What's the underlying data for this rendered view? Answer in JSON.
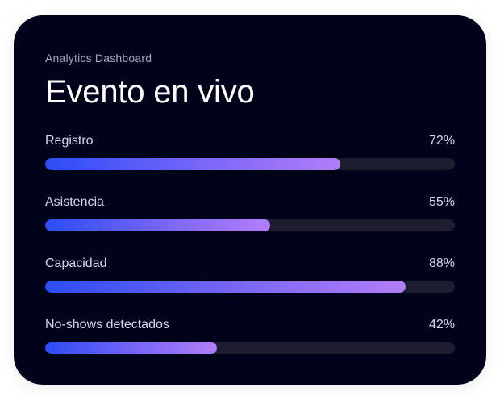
{
  "header": {
    "eyebrow": "Analytics Dashboard",
    "title": "Evento en vivo"
  },
  "metrics": [
    {
      "label": "Registro",
      "value_text": "72%",
      "value": 72
    },
    {
      "label": "Asistencia",
      "value_text": "55%",
      "value": 55
    },
    {
      "label": "Capacidad",
      "value_text": "88%",
      "value": 88
    },
    {
      "label": "No-shows detectados",
      "value_text": "42%",
      "value": 42
    }
  ],
  "colors": {
    "card_background": "#01031a",
    "track": "#1c1e30",
    "gradient_start": "#2b4cf6",
    "gradient_end": "#b27ef8"
  }
}
